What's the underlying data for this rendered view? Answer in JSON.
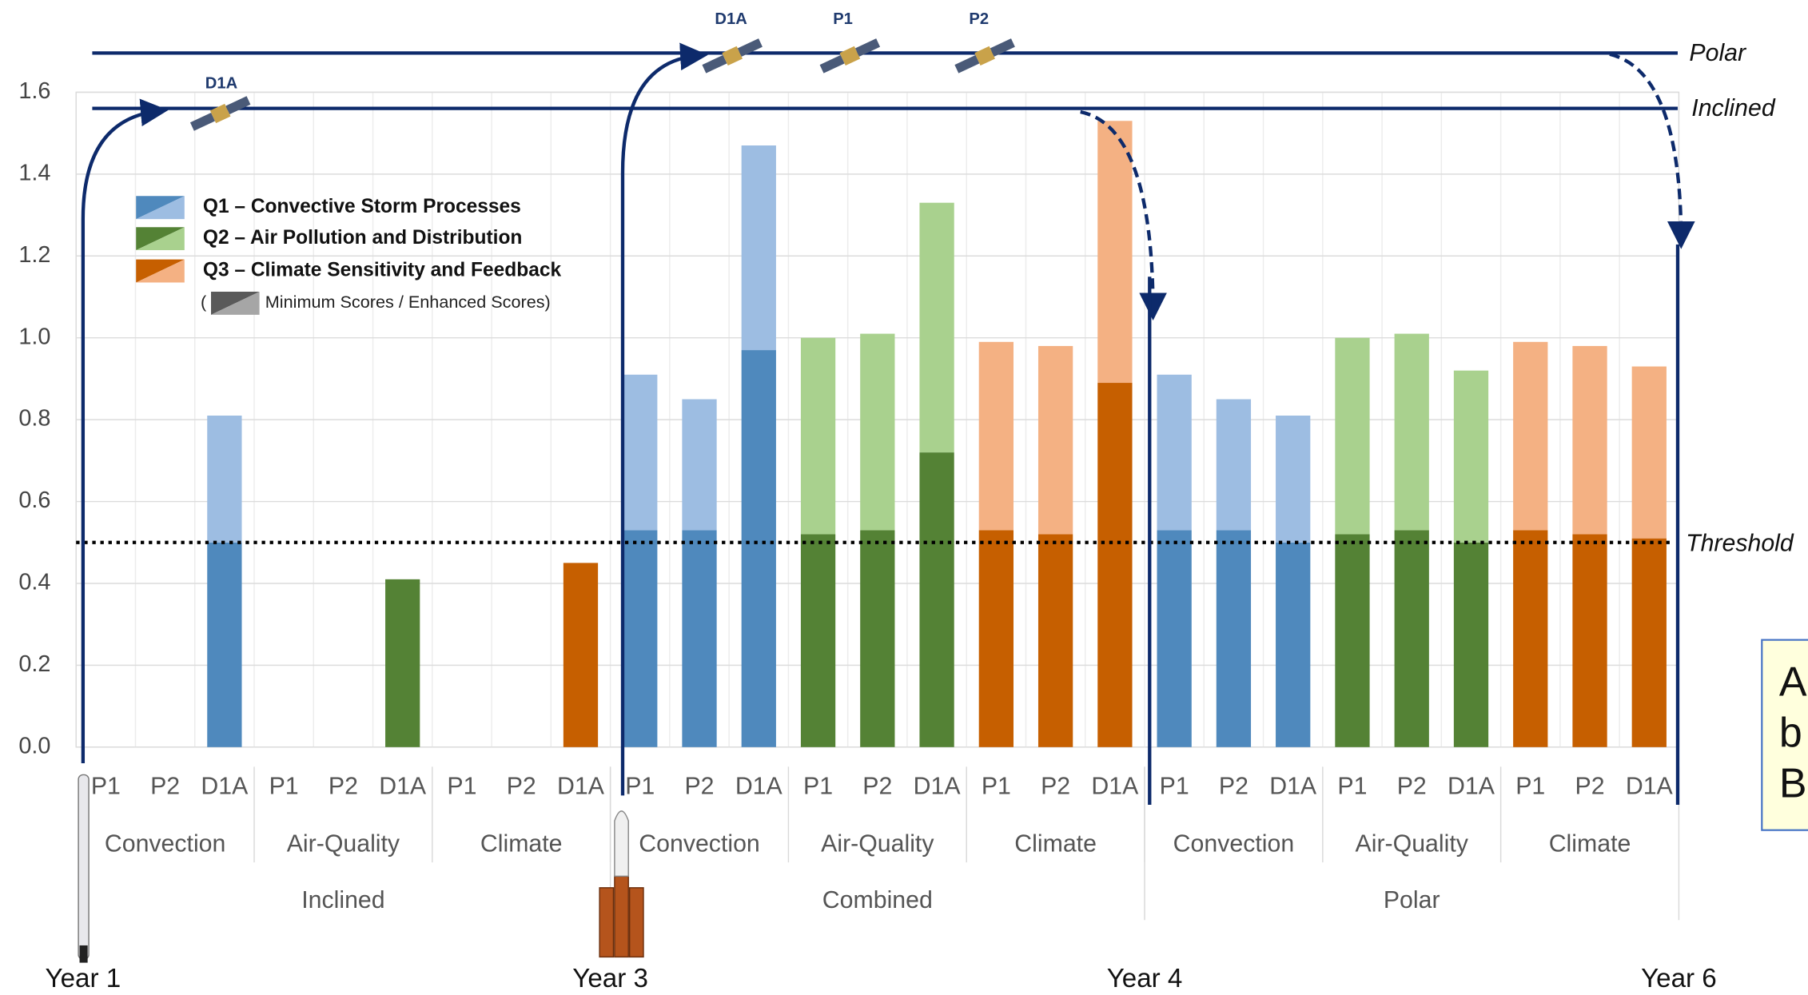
{
  "chart_data": {
    "type": "bar",
    "stacked": true,
    "categories": [
      "P1",
      "P2",
      "D1A",
      "P1",
      "P2",
      "D1A",
      "P1",
      "P2",
      "D1A",
      "P1",
      "P2",
      "D1A",
      "P1",
      "P2",
      "D1A",
      "P1",
      "P2",
      "D1A",
      "P1",
      "P2",
      "D1A",
      "P1",
      "P2",
      "D1A",
      "P1",
      "P2",
      "D1A"
    ],
    "topics": [
      "Convection",
      "Air-Quality",
      "Climate",
      "Convection",
      "Air-Quality",
      "Climate",
      "Convection",
      "Air-Quality",
      "Climate"
    ],
    "groups": [
      "Inclined",
      "Combined",
      "Polar"
    ],
    "series": [
      {
        "name": "Q1 – Convective Storm Processes",
        "color": "#4f89bd",
        "enhanced_color": "#9dbde2",
        "values": [
          null,
          null,
          0.5,
          null,
          null,
          null,
          null,
          null,
          null,
          0.53,
          0.53,
          0.97,
          null,
          null,
          null,
          null,
          null,
          null,
          0.53,
          0.53,
          0.5,
          null,
          null,
          null,
          null,
          null,
          null
        ],
        "enhanced": [
          null,
          null,
          0.31,
          null,
          null,
          null,
          null,
          null,
          null,
          0.38,
          0.32,
          0.5,
          null,
          null,
          null,
          null,
          null,
          null,
          0.38,
          0.32,
          0.31,
          null,
          null,
          null,
          null,
          null,
          null
        ]
      },
      {
        "name": "Q2 – Air Pollution and Distribution",
        "color": "#548235",
        "enhanced_color": "#a9d18e",
        "values": [
          null,
          null,
          null,
          null,
          null,
          0.41,
          null,
          null,
          null,
          null,
          null,
          null,
          0.52,
          0.53,
          0.72,
          null,
          null,
          null,
          null,
          null,
          null,
          0.52,
          0.53,
          0.5,
          null,
          null,
          null
        ],
        "enhanced": [
          null,
          null,
          null,
          null,
          null,
          null,
          null,
          null,
          null,
          null,
          null,
          null,
          0.48,
          0.48,
          0.61,
          null,
          null,
          null,
          null,
          null,
          null,
          0.48,
          0.48,
          0.42,
          null,
          null,
          null
        ]
      },
      {
        "name": "Q3 – Climate Sensitivity and Feedback",
        "color": "#c65f00",
        "enhanced_color": "#f4b183",
        "values": [
          null,
          null,
          null,
          null,
          null,
          null,
          null,
          null,
          0.45,
          null,
          null,
          null,
          null,
          null,
          null,
          0.53,
          0.52,
          0.89,
          null,
          null,
          null,
          null,
          null,
          null,
          0.53,
          0.52,
          0.51
        ],
        "enhanced": [
          null,
          null,
          null,
          null,
          null,
          null,
          null,
          null,
          null,
          null,
          null,
          null,
          null,
          null,
          null,
          0.46,
          0.46,
          0.64,
          null,
          null,
          null,
          null,
          null,
          null,
          0.46,
          0.46,
          0.42
        ]
      }
    ],
    "legend_note_open": "(",
    "legend_note": "Minimum Scores / Enhanced Scores)",
    "ylim": [
      0,
      1.6
    ],
    "yticks": [
      {
        "value": 0,
        "label": "0.0"
      },
      {
        "value": 0.2,
        "label": "0.2"
      },
      {
        "value": 0.4,
        "label": "0.4"
      },
      {
        "value": 0.6,
        "label": "0.6"
      },
      {
        "value": 0.8,
        "label": "0.8"
      },
      {
        "value": 1,
        "label": "1.0"
      },
      {
        "value": 1.2,
        "label": "1.2"
      },
      {
        "value": 1.4,
        "label": "1.4"
      },
      {
        "value": 1.6,
        "label": "1.6"
      }
    ],
    "grid": true,
    "threshold": {
      "value": 0.5,
      "label": "Threshold"
    },
    "orbits": [
      "Polar",
      "Inclined"
    ],
    "years": [
      "Year 1",
      "Year 3",
      "Year 4",
      "Year 6"
    ],
    "satellite_labels": [
      "D1A",
      "D1A",
      "P1",
      "P2"
    ],
    "cutoff_text": [
      "A",
      "b",
      "B"
    ]
  }
}
